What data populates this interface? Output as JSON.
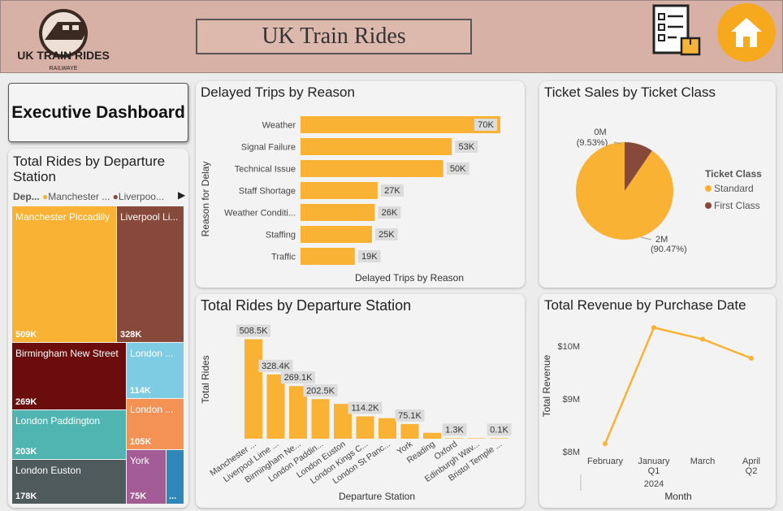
{
  "header": {
    "title": "UK Train Rides",
    "logo_text": "UK TRAIN RIDES",
    "logo_subtext": "RAILWAYE"
  },
  "icons": {
    "report": "report-checklist-icon",
    "home": "home-icon"
  },
  "colors": {
    "accent": "#f9b234",
    "brown": "#87493a",
    "header": "#d8b1a6"
  },
  "exec_button": {
    "label": "Executive Dashboard"
  },
  "treemap_card": {
    "title": "Total Rides by Departure Station",
    "legend_prefix": "Dep...",
    "legend_items": [
      {
        "label": "Manchester ...",
        "color": "#f9b234"
      },
      {
        "label": "Liverpoo...",
        "color": "#87493a"
      }
    ],
    "tiles": [
      {
        "label": "Manchester Piccadilly",
        "value": "509K",
        "color": "#f9b234"
      },
      {
        "label": "Liverpool Li...",
        "value": "328K",
        "color": "#87493a"
      },
      {
        "label": "Birmingham New Street",
        "value": "269K",
        "color": "#6b0d0d"
      },
      {
        "label": "London ...",
        "value": "114K",
        "color": "#7ecbe4"
      },
      {
        "label": "London ...",
        "value": "105K",
        "color": "#f49256"
      },
      {
        "label": "London Paddington",
        "value": "203K",
        "color": "#50b5b0"
      },
      {
        "label": "London Euston",
        "value": "178K",
        "color": "#4f5a5c"
      },
      {
        "label": "York",
        "value": "75K",
        "color": "#a35c95"
      },
      {
        "label": "...",
        "value": "",
        "color": "#2f86b8"
      }
    ]
  },
  "chart_data": [
    {
      "type": "bar",
      "orientation": "horizontal",
      "title": "Delayed Trips by Reason",
      "xlabel": "Delayed Trips by Reason",
      "ylabel": "Reason for Delay",
      "categories": [
        "Weather",
        "Signal Failure",
        "Technical Issue",
        "Staff Shortage",
        "Weather Conditi...",
        "Staffing",
        "Traffic"
      ],
      "values": [
        70,
        53,
        50,
        27,
        26,
        25,
        19
      ],
      "data_labels": [
        "70K",
        "53K",
        "50K",
        "27K",
        "26K",
        "25K",
        "19K"
      ]
    },
    {
      "type": "pie",
      "title": "Ticket Sales by Ticket Class",
      "legend_title": "Ticket Class",
      "legend_position": "right",
      "slices": [
        {
          "name": "Standard",
          "value": 90.47,
          "label": "2M",
          "pct_label": "(90.47%)",
          "color": "#f9b234"
        },
        {
          "name": "First Class",
          "value": 9.53,
          "label": "0M",
          "pct_label": "(9.53%)",
          "color": "#87493a"
        }
      ]
    },
    {
      "type": "bar",
      "title": "Total Rides by Departure Station",
      "xlabel": "Departure Station",
      "ylabel": "Total Rides",
      "categories": [
        "Manchester ...",
        "Liverpool Lime ...",
        "Birmingham Ne...",
        "London Paddin...",
        "London Euston",
        "London Kings C...",
        "London St Panc...",
        "York",
        "Reading",
        "Oxford",
        "Edinburgh Wav...",
        "Bristol Temple ..."
      ],
      "values": [
        508.5,
        328.4,
        269.1,
        202.5,
        178,
        114.2,
        105,
        75.1,
        30,
        1.3,
        0.8,
        0.1
      ],
      "data_labels": [
        "508.5K",
        "328.4K",
        "269.1K",
        "202.5K",
        "",
        "114.2K",
        "",
        "75.1K",
        "",
        "1.3K",
        "",
        "0.1K"
      ],
      "ylim": [
        0,
        540
      ]
    },
    {
      "type": "line",
      "title": "Total Revenue by Purchase Date",
      "xlabel": "Month",
      "ylabel": "Total Revenue",
      "categories": [
        "February",
        "January",
        "March",
        "April"
      ],
      "quarters": [
        "",
        "Q1",
        "",
        "Q2"
      ],
      "year": "2024",
      "values": [
        8.15,
        10.35,
        10.13,
        9.77
      ],
      "y_ticks": [
        "$8M",
        "$9M",
        "$10M"
      ],
      "y_tick_values": [
        8,
        9,
        10
      ],
      "ylim": [
        8,
        10.5
      ]
    }
  ]
}
